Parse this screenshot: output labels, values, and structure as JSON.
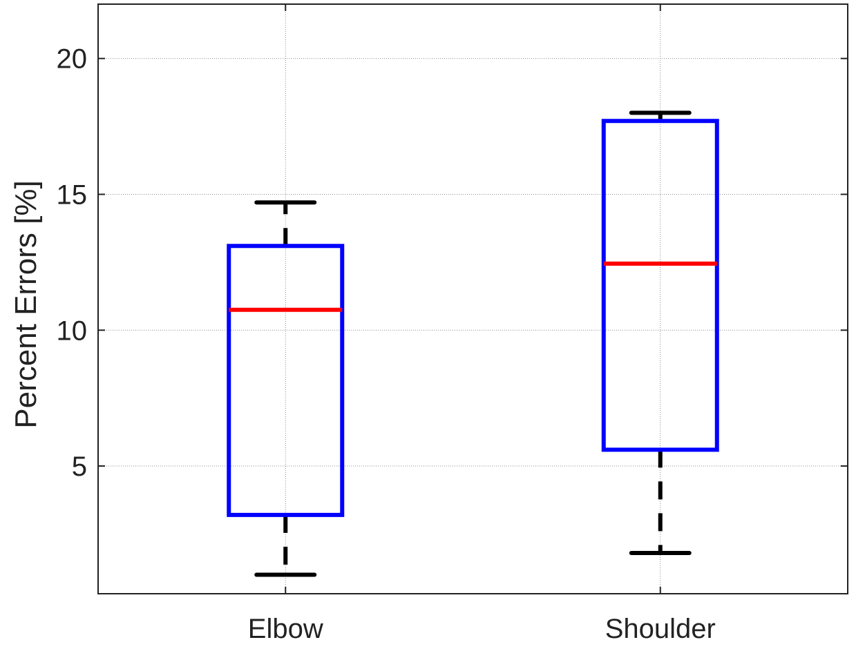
{
  "chart_data": {
    "type": "box",
    "categories": [
      "Elbow",
      "Shoulder"
    ],
    "boxes": [
      {
        "category": "Elbow",
        "whisker_low": 1.0,
        "q1": 3.2,
        "median": 10.75,
        "q3": 13.1,
        "whisker_high": 14.7
      },
      {
        "category": "Shoulder",
        "whisker_low": 1.8,
        "q1": 5.6,
        "median": 12.45,
        "q3": 17.7,
        "whisker_high": 18.0
      }
    ],
    "ylabel": "Percent Errors [%]",
    "xlabel": "",
    "ylim": [
      0.3,
      22
    ],
    "yticks": [
      5,
      10,
      15,
      20
    ],
    "ytick_labels": [
      "5",
      "10",
      "15",
      "20"
    ],
    "grid": true,
    "colors": {
      "box": "#0000ff",
      "median": "#ff0000",
      "whisker": "#000000",
      "grid": "#888888"
    }
  }
}
